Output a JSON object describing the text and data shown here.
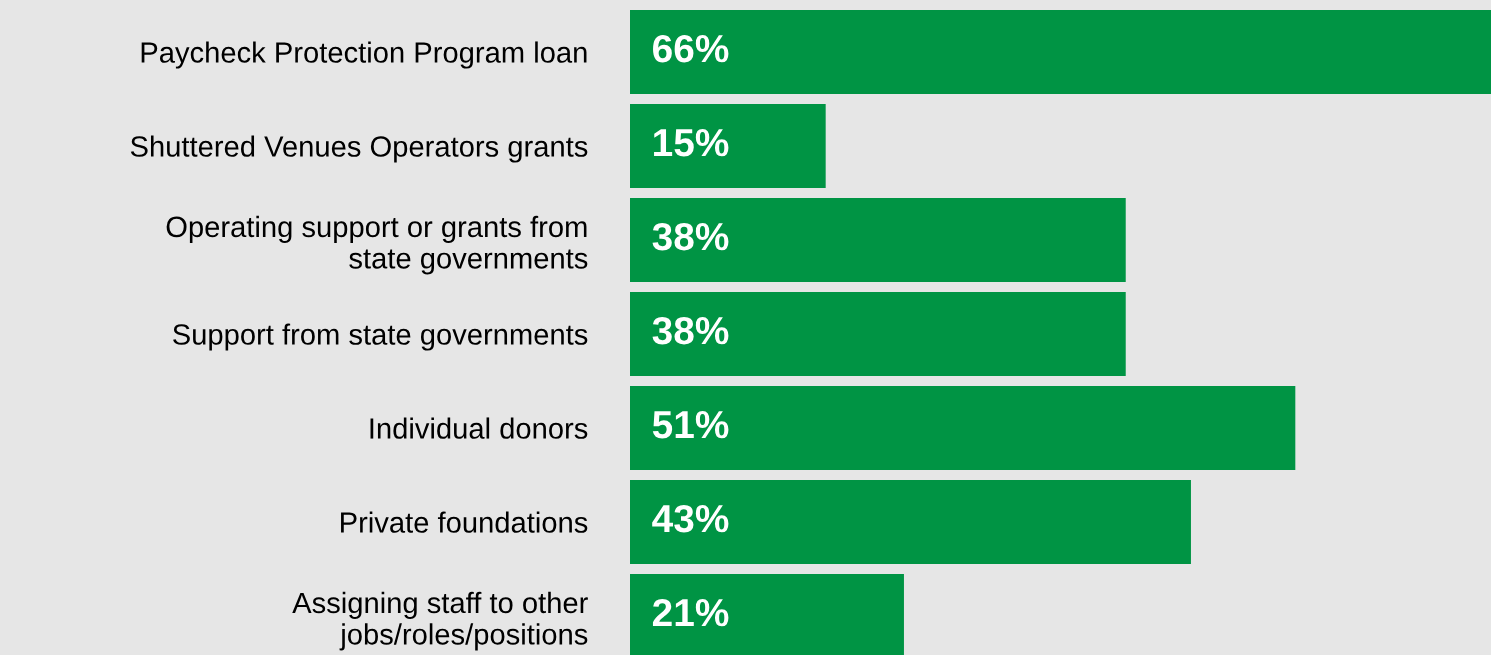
{
  "chart_data": {
    "type": "bar",
    "orientation": "horizontal",
    "categories": [
      "Paycheck Protection Program loan",
      "Shuttered Venues Operators grants",
      "Operating support or grants from\nstate governments",
      "Support from state governments",
      "Individual donors",
      "Private foundations",
      "Assigning staff to other\njobs/roles/positions"
    ],
    "values": [
      66,
      15,
      38,
      38,
      51,
      43,
      21
    ],
    "value_labels": [
      "66%",
      "15%",
      "38%",
      "38%",
      "51%",
      "43%",
      "21%"
    ],
    "color": "#009444",
    "xlim": [
      0,
      66
    ],
    "tick_labels": "y",
    "grid": false,
    "legend": false
  }
}
